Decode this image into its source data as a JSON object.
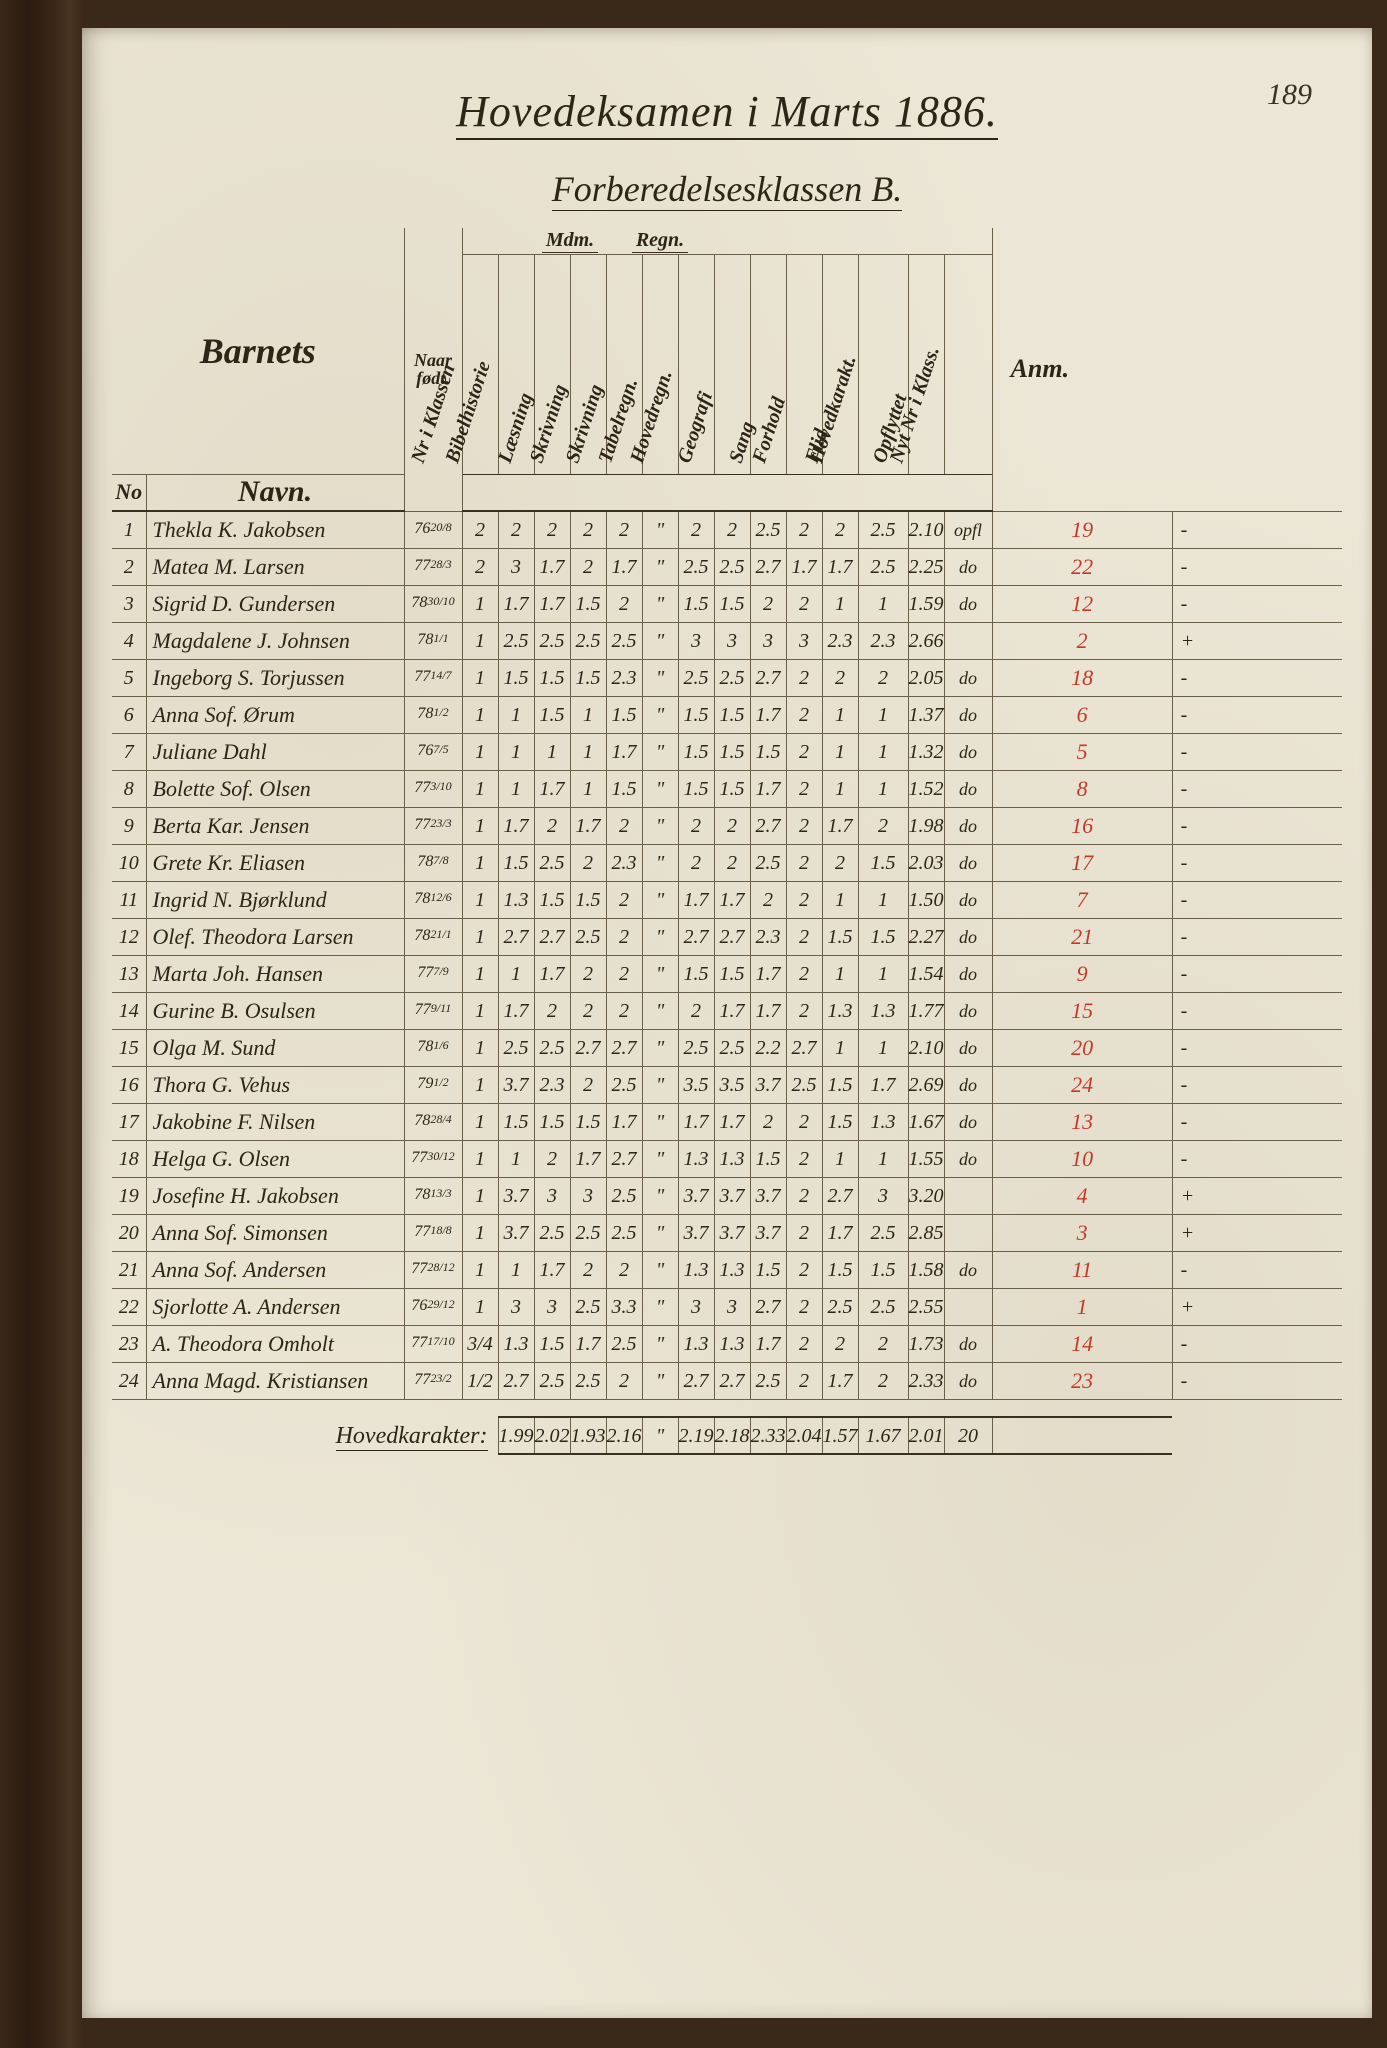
{
  "page_number": "189",
  "title": "Hovedeksamen i Marts 1886.",
  "subtitle": "Forberedelsesklassen B.",
  "header": {
    "barnets": "Barnets",
    "no": "No",
    "navn": "Navn.",
    "naar_fodt": "Naar født.",
    "anm": "Anm.",
    "group_mdm": "Mdm.",
    "group_regn": "Regn.",
    "columns": [
      "Nr i Klassen",
      "Bibelhistorie",
      "Læsning",
      "Skrivning",
      "Skrivning",
      "Tabelregn.",
      "Hovedregn.",
      "Geografi",
      "Sang",
      "Forhold",
      "Flid",
      "Hovedkarakt.",
      "Opflyttet",
      "Nyt Nr i Klass."
    ]
  },
  "rows": [
    {
      "no": "1",
      "name": "Thekla K. Jakobsen",
      "born_yr": "76",
      "born_dm": "20/8",
      "g": [
        "2",
        "2",
        "2",
        "2",
        "2",
        "\"",
        "2",
        "2",
        "2.5",
        "2",
        "2",
        "2.5",
        "2.10"
      ],
      "op": "opfl",
      "rank": "19",
      "anm": "-"
    },
    {
      "no": "2",
      "name": "Matea M. Larsen",
      "born_yr": "77",
      "born_dm": "28/3",
      "g": [
        "2",
        "3",
        "1.7",
        "2",
        "1.7",
        "\"",
        "2.5",
        "2.5",
        "2.7",
        "1.7",
        "1.7",
        "2.5",
        "2.25"
      ],
      "op": "do",
      "rank": "22",
      "anm": "-"
    },
    {
      "no": "3",
      "name": "Sigrid D. Gundersen",
      "born_yr": "78",
      "born_dm": "30/10",
      "g": [
        "1",
        "1.7",
        "1.7",
        "1.5",
        "2",
        "\"",
        "1.5",
        "1.5",
        "2",
        "2",
        "1",
        "1",
        "1.59"
      ],
      "op": "do",
      "rank": "12",
      "anm": "-"
    },
    {
      "no": "4",
      "name": "Magdalene J. Johnsen",
      "born_yr": "78",
      "born_dm": "1/1",
      "g": [
        "1",
        "2.5",
        "2.5",
        "2.5",
        "2.5",
        "\"",
        "3",
        "3",
        "3",
        "3",
        "2.3",
        "2.3",
        "2.66"
      ],
      "op": "",
      "rank": "2",
      "anm": "+"
    },
    {
      "no": "5",
      "name": "Ingeborg S. Torjussen",
      "born_yr": "77",
      "born_dm": "14/7",
      "g": [
        "1",
        "1.5",
        "1.5",
        "1.5",
        "2.3",
        "\"",
        "2.5",
        "2.5",
        "2.7",
        "2",
        "2",
        "2",
        "2.05"
      ],
      "op": "do",
      "rank": "18",
      "anm": "-"
    },
    {
      "no": "6",
      "name": "Anna Sof. Ørum",
      "born_yr": "78",
      "born_dm": "1/2",
      "g": [
        "1",
        "1",
        "1.5",
        "1",
        "1.5",
        "\"",
        "1.5",
        "1.5",
        "1.7",
        "2",
        "1",
        "1",
        "1.37"
      ],
      "op": "do",
      "rank": "6",
      "anm": "-"
    },
    {
      "no": "7",
      "name": "Juliane Dahl",
      "born_yr": "76",
      "born_dm": "7/5",
      "g": [
        "1",
        "1",
        "1",
        "1",
        "1.7",
        "\"",
        "1.5",
        "1.5",
        "1.5",
        "2",
        "1",
        "1",
        "1.32"
      ],
      "op": "do",
      "rank": "5",
      "anm": "-"
    },
    {
      "no": "8",
      "name": "Bolette Sof. Olsen",
      "born_yr": "77",
      "born_dm": "3/10",
      "g": [
        "1",
        "1",
        "1.7",
        "1",
        "1.5",
        "\"",
        "1.5",
        "1.5",
        "1.7",
        "2",
        "1",
        "1",
        "1.52"
      ],
      "op": "do",
      "rank": "8",
      "anm": "-"
    },
    {
      "no": "9",
      "name": "Berta Kar. Jensen",
      "born_yr": "77",
      "born_dm": "23/3",
      "g": [
        "1",
        "1.7",
        "2",
        "1.7",
        "2",
        "\"",
        "2",
        "2",
        "2.7",
        "2",
        "1.7",
        "2",
        "1.98"
      ],
      "op": "do",
      "rank": "16",
      "anm": "-"
    },
    {
      "no": "10",
      "name": "Grete Kr. Eliasen",
      "born_yr": "78",
      "born_dm": "7/8",
      "g": [
        "1",
        "1.5",
        "2.5",
        "2",
        "2.3",
        "\"",
        "2",
        "2",
        "2.5",
        "2",
        "2",
        "1.5",
        "2.03"
      ],
      "op": "do",
      "rank": "17",
      "anm": "-"
    },
    {
      "no": "11",
      "name": "Ingrid N. Bjørklund",
      "born_yr": "78",
      "born_dm": "12/6",
      "g": [
        "1",
        "1.3",
        "1.5",
        "1.5",
        "2",
        "\"",
        "1.7",
        "1.7",
        "2",
        "2",
        "1",
        "1",
        "1.50"
      ],
      "op": "do",
      "rank": "7",
      "anm": "-"
    },
    {
      "no": "12",
      "name": "Olef. Theodora Larsen",
      "born_yr": "78",
      "born_dm": "21/1",
      "g": [
        "1",
        "2.7",
        "2.7",
        "2.5",
        "2",
        "\"",
        "2.7",
        "2.7",
        "2.3",
        "2",
        "1.5",
        "1.5",
        "2.27"
      ],
      "op": "do",
      "rank": "21",
      "anm": "-"
    },
    {
      "no": "13",
      "name": "Marta Joh. Hansen",
      "born_yr": "77",
      "born_dm": "7/9",
      "g": [
        "1",
        "1",
        "1.7",
        "2",
        "2",
        "\"",
        "1.5",
        "1.5",
        "1.7",
        "2",
        "1",
        "1",
        "1.54"
      ],
      "op": "do",
      "rank": "9",
      "anm": "-"
    },
    {
      "no": "14",
      "name": "Gurine B. Osulsen",
      "born_yr": "77",
      "born_dm": "9/11",
      "g": [
        "1",
        "1.7",
        "2",
        "2",
        "2",
        "\"",
        "2",
        "1.7",
        "1.7",
        "2",
        "1.3",
        "1.3",
        "1.77"
      ],
      "op": "do",
      "rank": "15",
      "anm": "-"
    },
    {
      "no": "15",
      "name": "Olga M. Sund",
      "born_yr": "78",
      "born_dm": "1/6",
      "g": [
        "1",
        "2.5",
        "2.5",
        "2.7",
        "2.7",
        "\"",
        "2.5",
        "2.5",
        "2.2",
        "2.7",
        "1",
        "1",
        "2.10"
      ],
      "op": "do",
      "rank": "20",
      "anm": "-"
    },
    {
      "no": "16",
      "name": "Thora G. Vehus",
      "born_yr": "79",
      "born_dm": "1/2",
      "g": [
        "1",
        "3.7",
        "2.3",
        "2",
        "2.5",
        "\"",
        "3.5",
        "3.5",
        "3.7",
        "2.5",
        "1.5",
        "1.7",
        "2.69"
      ],
      "op": "do",
      "rank": "24",
      "anm": "-"
    },
    {
      "no": "17",
      "name": "Jakobine F. Nilsen",
      "born_yr": "78",
      "born_dm": "28/4",
      "g": [
        "1",
        "1.5",
        "1.5",
        "1.5",
        "1.7",
        "\"",
        "1.7",
        "1.7",
        "2",
        "2",
        "1.5",
        "1.3",
        "1.67"
      ],
      "op": "do",
      "rank": "13",
      "anm": "-"
    },
    {
      "no": "18",
      "name": "Helga G. Olsen",
      "born_yr": "77",
      "born_dm": "30/12",
      "g": [
        "1",
        "1",
        "2",
        "1.7",
        "2.7",
        "\"",
        "1.3",
        "1.3",
        "1.5",
        "2",
        "1",
        "1",
        "1.55"
      ],
      "op": "do",
      "rank": "10",
      "anm": "-"
    },
    {
      "no": "19",
      "name": "Josefine H. Jakobsen",
      "born_yr": "78",
      "born_dm": "13/3",
      "g": [
        "1",
        "3.7",
        "3",
        "3",
        "2.5",
        "\"",
        "3.7",
        "3.7",
        "3.7",
        "2",
        "2.7",
        "3",
        "3.20"
      ],
      "op": "",
      "rank": "4",
      "anm": "+"
    },
    {
      "no": "20",
      "name": "Anna Sof. Simonsen",
      "born_yr": "77",
      "born_dm": "18/8",
      "g": [
        "1",
        "3.7",
        "2.5",
        "2.5",
        "2.5",
        "\"",
        "3.7",
        "3.7",
        "3.7",
        "2",
        "1.7",
        "2.5",
        "2.85"
      ],
      "op": "",
      "rank": "3",
      "anm": "+"
    },
    {
      "no": "21",
      "name": "Anna Sof. Andersen",
      "born_yr": "77",
      "born_dm": "28/12",
      "g": [
        "1",
        "1",
        "1.7",
        "2",
        "2",
        "\"",
        "1.3",
        "1.3",
        "1.5",
        "2",
        "1.5",
        "1.5",
        "1.58"
      ],
      "op": "do",
      "rank": "11",
      "anm": "-"
    },
    {
      "no": "22",
      "name": "Sjorlotte A. Andersen",
      "born_yr": "76",
      "born_dm": "29/12",
      "g": [
        "1",
        "3",
        "3",
        "2.5",
        "3.3",
        "\"",
        "3",
        "3",
        "2.7",
        "2",
        "2.5",
        "2.5",
        "2.55"
      ],
      "op": "",
      "rank": "1",
      "anm": "+"
    },
    {
      "no": "23",
      "name": "A. Theodora Omholt",
      "born_yr": "77",
      "born_dm": "17/10",
      "g": [
        "3/4",
        "1.3",
        "1.5",
        "1.7",
        "2.5",
        "\"",
        "1.3",
        "1.3",
        "1.7",
        "2",
        "2",
        "2",
        "1.73"
      ],
      "op": "do",
      "rank": "14",
      "anm": "-"
    },
    {
      "no": "24",
      "name": "Anna Magd. Kristiansen",
      "born_yr": "77",
      "born_dm": "23/2",
      "g": [
        "1/2",
        "2.7",
        "2.5",
        "2.5",
        "2",
        "\"",
        "2.7",
        "2.7",
        "2.5",
        "2",
        "1.7",
        "2",
        "2.33"
      ],
      "op": "do",
      "rank": "23",
      "anm": "-"
    }
  ],
  "summary": {
    "label": "Hovedkarakter:",
    "values": [
      "1.99",
      "2.02",
      "1.93",
      "2.16",
      "\"",
      "2.19",
      "2.18",
      "2.33",
      "2.04",
      "1.57",
      "1.67",
      "2.01"
    ],
    "count": "20"
  },
  "colors": {
    "page_bg": "#ece6d6",
    "ink": "#2c2518",
    "rule": "#6a5f48",
    "red_ink": "#c43a2a"
  }
}
